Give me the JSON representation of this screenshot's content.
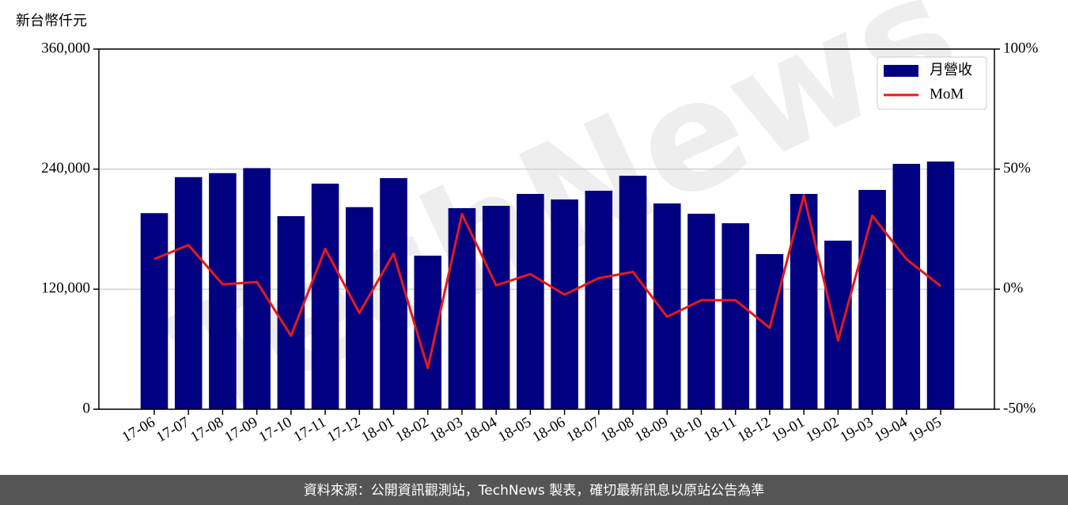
{
  "chart_data": {
    "type": "bar-line",
    "y_label": "新台幣仟元",
    "watermark": "TechNews",
    "categories": [
      "17-06",
      "17-07",
      "17-08",
      "17-09",
      "17-10",
      "17-11",
      "17-12",
      "18-01",
      "18-02",
      "18-03",
      "18-04",
      "18-05",
      "18-06",
      "18-07",
      "18-08",
      "18-09",
      "18-10",
      "18-11",
      "18-12",
      "19-01",
      "19-02",
      "19-03",
      "19-04",
      "19-05"
    ],
    "series": [
      {
        "name": "月營收",
        "type": "bar",
        "color": "#000080",
        "values": [
          196000,
          232000,
          236000,
          241000,
          193000,
          225500,
          202000,
          231000,
          153500,
          201000,
          203300,
          215200,
          209700,
          218400,
          233400,
          205700,
          195400,
          185900,
          155100,
          215200,
          168500,
          219200,
          245300,
          247600
        ]
      },
      {
        "name": "MoM",
        "type": "line",
        "axis": "y2",
        "color": "#e41a1c",
        "values": [
          12.5,
          18.4,
          2,
          3,
          -19.4,
          16.8,
          -9.9,
          14.8,
          -32.9,
          31.3,
          1.6,
          6.3,
          -2.3,
          4.6,
          7.2,
          -11.5,
          -4.6,
          -4.6,
          -16.1,
          39.1,
          -21.4,
          30.6,
          12.5,
          1.3
        ]
      }
    ],
    "ylim": [
      0,
      360000
    ],
    "yticks": [
      0,
      {
        "value": 120000,
        "label": "120,000"
      },
      {
        "value": 240000,
        "label": "240,000"
      },
      {
        "value": 360000,
        "label": "360,000"
      }
    ],
    "y2lim": [
      -50,
      100
    ],
    "y2ticks": [
      {
        "value": -50,
        "label": "-50%"
      },
      {
        "value": 0,
        "label": "0%"
      },
      {
        "value": 50,
        "label": "50%"
      },
      {
        "value": 100,
        "label": "100%"
      }
    ],
    "grid": true,
    "legend": "upper right"
  },
  "footer": "資料來源：公開資訊觀測站，TechNews 製表，確切最新訊息以原站公告為準"
}
